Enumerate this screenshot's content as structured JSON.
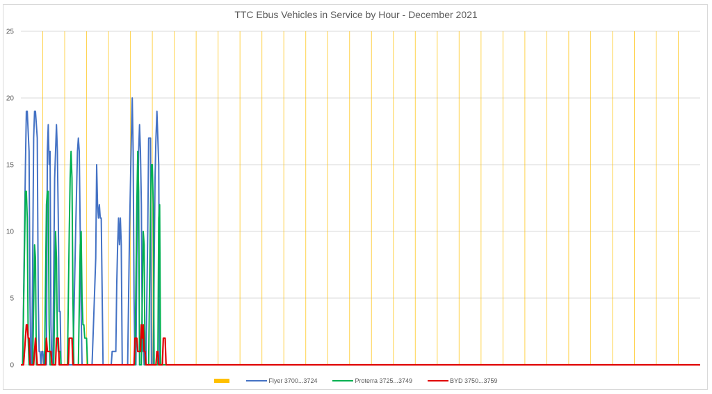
{
  "chart": {
    "title": "TTC Ebus Vehicles in Service by Hour - December 2021",
    "colors": {
      "day_marker": "#FFC000",
      "flyer": "#4472C4",
      "proterra": "#00B050",
      "byd": "#E00000",
      "grid": "#d9d9d9",
      "text": "#595959"
    },
    "legend": [
      {
        "label": "",
        "type": "box",
        "color": "#FFC000"
      },
      {
        "label": "Flyer 3700...3724",
        "type": "line",
        "color": "#4472C4"
      },
      {
        "label": "Proterra 3725...3749",
        "type": "line",
        "color": "#00B050"
      },
      {
        "label": "BYD 3750...3759",
        "type": "line",
        "color": "#E00000"
      }
    ],
    "yticks": [
      "0",
      "5",
      "10",
      "15",
      "20",
      "25"
    ]
  },
  "chart_data": {
    "type": "line",
    "title": "TTC Ebus Vehicles in Service by Hour - December 2021",
    "xlabel": "",
    "ylabel": "",
    "ylim": [
      0,
      25
    ],
    "xlim_hours": [
      0,
      744
    ],
    "grid": true,
    "legend_position": "bottom",
    "day_markers_every_hours": 24,
    "series": [
      {
        "name": "Flyer 3700...3724",
        "points_hour_value": [
          [
            0,
            0
          ],
          [
            2,
            0
          ],
          [
            5,
            15
          ],
          [
            6,
            19
          ],
          [
            7,
            19
          ],
          [
            9,
            16
          ],
          [
            10,
            5
          ],
          [
            11,
            0
          ],
          [
            12,
            0
          ],
          [
            14,
            17
          ],
          [
            15,
            19
          ],
          [
            16,
            19
          ],
          [
            18,
            17
          ],
          [
            19,
            5
          ],
          [
            20,
            1
          ],
          [
            21,
            1
          ],
          [
            22,
            0
          ],
          [
            23,
            1
          ],
          [
            24,
            1
          ],
          [
            25,
            0
          ],
          [
            26,
            1
          ],
          [
            27,
            1
          ],
          [
            28,
            0
          ],
          [
            29,
            16
          ],
          [
            30,
            18
          ],
          [
            31,
            15
          ],
          [
            32,
            16
          ],
          [
            33,
            3
          ],
          [
            34,
            0
          ],
          [
            35,
            0
          ],
          [
            37,
            14
          ],
          [
            38,
            16
          ],
          [
            39,
            18
          ],
          [
            40,
            16
          ],
          [
            41,
            11
          ],
          [
            42,
            4
          ],
          [
            43,
            4
          ],
          [
            44,
            0
          ],
          [
            45,
            0
          ],
          [
            50,
            0
          ],
          [
            57,
            0
          ],
          [
            60,
            10
          ],
          [
            62,
            16
          ],
          [
            63,
            17
          ],
          [
            64,
            16
          ],
          [
            66,
            4
          ],
          [
            67,
            0
          ],
          [
            78,
            0
          ],
          [
            80,
            4
          ],
          [
            82,
            8
          ],
          [
            83,
            15
          ],
          [
            84,
            12
          ],
          [
            85,
            11
          ],
          [
            86,
            12
          ],
          [
            87,
            11
          ],
          [
            88,
            11
          ],
          [
            90,
            0
          ],
          [
            99,
            0
          ],
          [
            100,
            1
          ],
          [
            104,
            1
          ],
          [
            105,
            6
          ],
          [
            106,
            9
          ],
          [
            107,
            11
          ],
          [
            108,
            9
          ],
          [
            109,
            11
          ],
          [
            110,
            9
          ],
          [
            111,
            0
          ],
          [
            117,
            0
          ],
          [
            119,
            10
          ],
          [
            121,
            17
          ],
          [
            122,
            20
          ],
          [
            123,
            16
          ],
          [
            124,
            5
          ],
          [
            125,
            0
          ],
          [
            126,
            0
          ],
          [
            127,
            8
          ],
          [
            129,
            16
          ],
          [
            130,
            18
          ],
          [
            131,
            16
          ],
          [
            132,
            12
          ],
          [
            133,
            1
          ],
          [
            134,
            2
          ],
          [
            135,
            0
          ],
          [
            137,
            0
          ],
          [
            139,
            10
          ],
          [
            140,
            17
          ],
          [
            141,
            17
          ],
          [
            142,
            17
          ],
          [
            143,
            0
          ],
          [
            145,
            0
          ],
          [
            147,
            14
          ],
          [
            148,
            17
          ],
          [
            149,
            19
          ],
          [
            150,
            17
          ],
          [
            151,
            15
          ],
          [
            152,
            0
          ],
          [
            744,
            0
          ]
        ]
      },
      {
        "name": "Proterra 3725...3749",
        "points_hour_value": [
          [
            0,
            0
          ],
          [
            2,
            0
          ],
          [
            5,
            13
          ],
          [
            6,
            13
          ],
          [
            7,
            11
          ],
          [
            8,
            2
          ],
          [
            9,
            0
          ],
          [
            13,
            0
          ],
          [
            15,
            9
          ],
          [
            16,
            8
          ],
          [
            17,
            0
          ],
          [
            26,
            0
          ],
          [
            28,
            12
          ],
          [
            29,
            13
          ],
          [
            30,
            13
          ],
          [
            31,
            3
          ],
          [
            32,
            0
          ],
          [
            36,
            0
          ],
          [
            38,
            10
          ],
          [
            39,
            8
          ],
          [
            40,
            2
          ],
          [
            41,
            1
          ],
          [
            42,
            1
          ],
          [
            43,
            1
          ],
          [
            44,
            0
          ],
          [
            51,
            0
          ],
          [
            53,
            10
          ],
          [
            54,
            14
          ],
          [
            55,
            16
          ],
          [
            56,
            14
          ],
          [
            57,
            5
          ],
          [
            58,
            0
          ],
          [
            63,
            0
          ],
          [
            65,
            9
          ],
          [
            66,
            10
          ],
          [
            67,
            5
          ],
          [
            68,
            3
          ],
          [
            69,
            3
          ],
          [
            70,
            2
          ],
          [
            71,
            2
          ],
          [
            72,
            2
          ],
          [
            73,
            0
          ],
          [
            125,
            0
          ],
          [
            127,
            12
          ],
          [
            128,
            16
          ],
          [
            129,
            13
          ],
          [
            130,
            0
          ],
          [
            131,
            0
          ],
          [
            132,
            0
          ],
          [
            134,
            10
          ],
          [
            135,
            9
          ],
          [
            136,
            0
          ],
          [
            140,
            0
          ],
          [
            142,
            12
          ],
          [
            143,
            15
          ],
          [
            144,
            15
          ],
          [
            145,
            12
          ],
          [
            146,
            0
          ],
          [
            150,
            0
          ],
          [
            151,
            11
          ],
          [
            152,
            12
          ],
          [
            153,
            0
          ],
          [
            744,
            0
          ]
        ]
      },
      {
        "name": "BYD 3750...3759",
        "points_hour_value": [
          [
            0,
            0
          ],
          [
            3,
            0
          ],
          [
            5,
            2
          ],
          [
            6,
            3
          ],
          [
            7,
            3
          ],
          [
            8,
            2
          ],
          [
            9,
            2
          ],
          [
            10,
            0
          ],
          [
            14,
            0
          ],
          [
            15,
            1
          ],
          [
            16,
            2
          ],
          [
            17,
            1
          ],
          [
            18,
            0
          ],
          [
            27,
            0
          ],
          [
            28,
            2
          ],
          [
            29,
            1
          ],
          [
            30,
            1
          ],
          [
            31,
            1
          ],
          [
            32,
            1
          ],
          [
            33,
            1
          ],
          [
            34,
            0
          ],
          [
            38,
            0
          ],
          [
            39,
            2
          ],
          [
            40,
            2
          ],
          [
            41,
            2
          ],
          [
            42,
            0
          ],
          [
            52,
            0
          ],
          [
            53,
            2
          ],
          [
            54,
            2
          ],
          [
            55,
            2
          ],
          [
            56,
            2
          ],
          [
            57,
            0
          ],
          [
            124,
            0
          ],
          [
            125,
            2
          ],
          [
            126,
            2
          ],
          [
            127,
            2
          ],
          [
            128,
            1
          ],
          [
            129,
            1
          ],
          [
            130,
            1
          ],
          [
            131,
            1
          ],
          [
            132,
            3
          ],
          [
            133,
            2
          ],
          [
            134,
            3
          ],
          [
            135,
            1
          ],
          [
            136,
            1
          ],
          [
            137,
            0
          ],
          [
            148,
            0
          ],
          [
            149,
            1
          ],
          [
            150,
            1
          ],
          [
            151,
            0
          ],
          [
            155,
            0
          ],
          [
            156,
            2
          ],
          [
            157,
            2
          ],
          [
            158,
            2
          ],
          [
            159,
            0
          ],
          [
            744,
            0
          ]
        ]
      }
    ]
  }
}
